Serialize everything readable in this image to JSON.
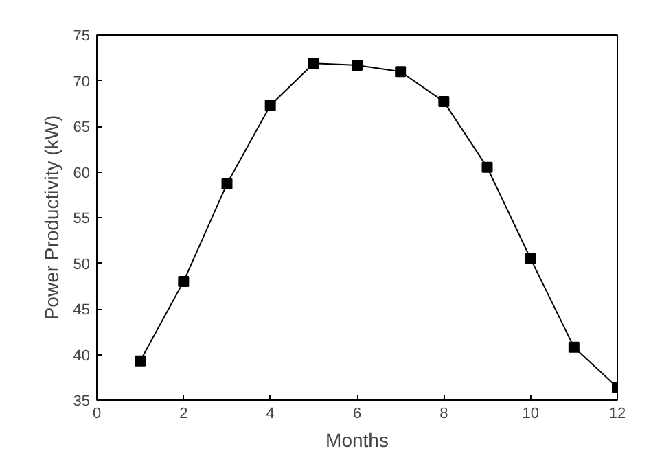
{
  "chart_data": {
    "type": "line",
    "xlabel": "Months",
    "ylabel": "Power Productivity (kW)",
    "x": [
      1,
      2,
      3,
      4,
      5,
      6,
      7,
      8,
      9,
      10,
      11,
      12
    ],
    "series": [
      {
        "color": "#000000",
        "values": [
          39.3,
          48.0,
          58.7,
          67.3,
          71.9,
          71.7,
          71.0,
          67.7,
          60.5,
          50.5,
          40.8,
          36.4
        ]
      }
    ],
    "xlim": [
      0,
      12
    ],
    "xticks": [
      0,
      2,
      4,
      6,
      8,
      10,
      12
    ],
    "ylim": [
      35,
      75
    ],
    "yticks": [
      35,
      40,
      45,
      50,
      55,
      60,
      65,
      70,
      75
    ],
    "grid": false,
    "marker": "square",
    "line_style": "solid"
  }
}
